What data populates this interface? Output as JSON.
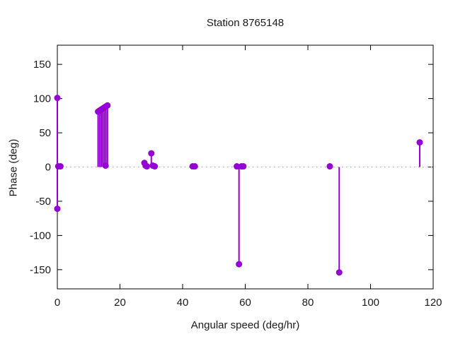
{
  "chart_data": {
    "type": "stem",
    "title": "Station 8765148",
    "xlabel": "Angular speed (deg/hr)",
    "ylabel": "Phase (deg)",
    "xlim": [
      0,
      120
    ],
    "ylim": [
      -178,
      178
    ],
    "xticks": [
      0,
      20,
      40,
      60,
      80,
      100,
      120
    ],
    "yticks": [
      -150,
      -100,
      -50,
      0,
      50,
      100,
      150
    ],
    "grid": "zero-line-dotted-only",
    "legend": "none",
    "marker": "filled-circle",
    "stem_baseline": 0,
    "colors": {
      "series": "#9400D3",
      "zero_line": "#a8a8a8",
      "border": "#000000",
      "text": "#1a1a1a",
      "background": "#ffffff"
    },
    "points": [
      [
        0,
        101
      ],
      [
        0,
        -61
      ],
      [
        0.3,
        1
      ],
      [
        1.0,
        1
      ],
      [
        13.0,
        81
      ],
      [
        13.5,
        82.5
      ],
      [
        14.0,
        84
      ],
      [
        14.5,
        85.5
      ],
      [
        15.0,
        87
      ],
      [
        15.4,
        2
      ],
      [
        15.5,
        88.5
      ],
      [
        16.0,
        90
      ],
      [
        27.8,
        6
      ],
      [
        28.2,
        2
      ],
      [
        28.6,
        1
      ],
      [
        30.0,
        20
      ],
      [
        30.5,
        2
      ],
      [
        31.1,
        1
      ],
      [
        43.2,
        1
      ],
      [
        43.9,
        1
      ],
      [
        57.3,
        1
      ],
      [
        58.0,
        -142
      ],
      [
        58.8,
        1
      ],
      [
        59.4,
        1
      ],
      [
        87.0,
        1
      ],
      [
        90.0,
        -154
      ],
      [
        115.7,
        36
      ]
    ]
  }
}
